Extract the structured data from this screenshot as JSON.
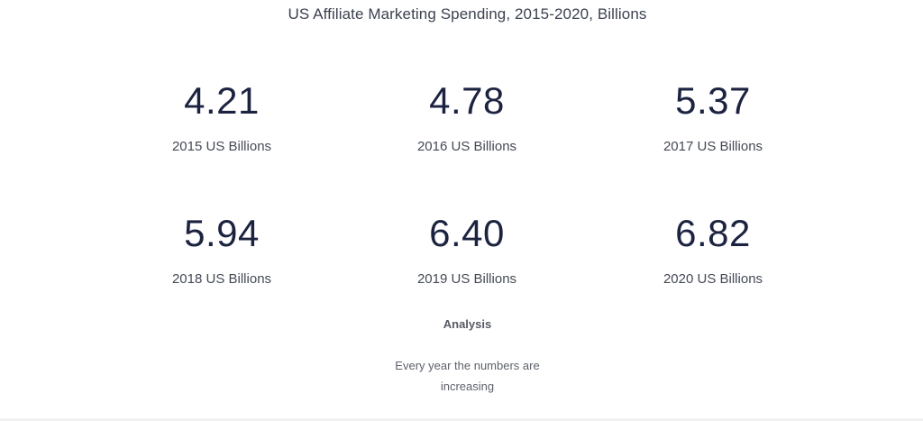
{
  "chart_data": {
    "type": "table",
    "title": "US Affiliate Marketing Spending, 2015-2020, Billions",
    "categories": [
      "2015",
      "2016",
      "2017",
      "2018",
      "2019",
      "2020"
    ],
    "values": [
      4.21,
      4.78,
      5.37,
      5.94,
      6.4,
      6.82
    ],
    "items": [
      {
        "value": "4.21",
        "label": "2015 US Billions"
      },
      {
        "value": "4.78",
        "label": "2016 US Billions"
      },
      {
        "value": "5.37",
        "label": "2017 US Billions"
      },
      {
        "value": "5.94",
        "label": "2018 US Billions"
      },
      {
        "value": "6.40",
        "label": "2019 US Billions"
      },
      {
        "value": "6.82",
        "label": "2020 US Billions"
      }
    ]
  },
  "analysis": {
    "heading": "Analysis",
    "text_line1": "Every year the numbers are",
    "text_line2": "increasing"
  },
  "colors": {
    "value": "#1c2340",
    "label": "#444a55",
    "title": "#3d4250"
  }
}
